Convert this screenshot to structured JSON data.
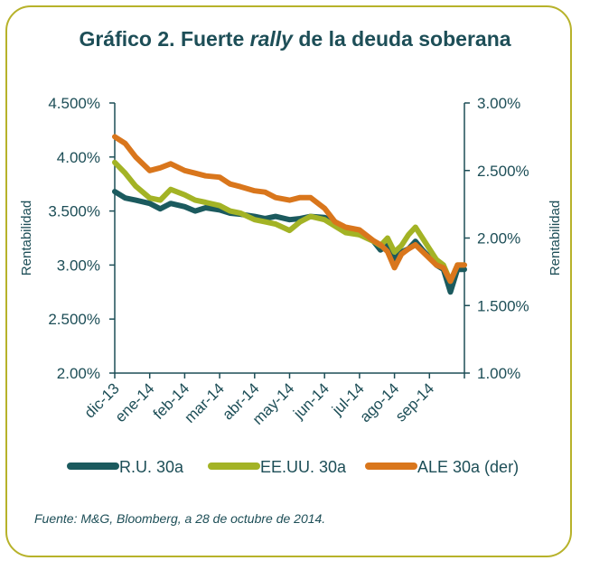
{
  "title": {
    "prefix": "Gráfico 2. Fuerte ",
    "italic": "rally",
    "suffix": " de la deuda soberana"
  },
  "source": "Fuente: M&G, Bloomberg, a 28 de octubre de 2014.",
  "colors": {
    "frame": "#b7b22a",
    "text": "#1d4e57",
    "ru": "#1b5a5e",
    "eeuu": "#a3b325",
    "ale": "#d9761c"
  },
  "chart_data": {
    "type": "line",
    "title": "Gráfico 2. Fuerte rally de la deuda soberana",
    "y_left": {
      "label": "Rentabilidad",
      "lim": [
        2.0,
        4.5
      ],
      "ticks": [
        {
          "v": 4.5,
          "t": "4.500%"
        },
        {
          "v": 4.0,
          "t": "4.00%"
        },
        {
          "v": 3.5,
          "t": "3.500%"
        },
        {
          "v": 3.0,
          "t": "3.00%"
        },
        {
          "v": 2.5,
          "t": "2.500%"
        },
        {
          "v": 2.0,
          "t": "2.00%"
        }
      ]
    },
    "y_right": {
      "label": "Rentabilidad",
      "lim": [
        1.0,
        3.0
      ],
      "ticks": [
        {
          "v": 3.0,
          "t": "3.00%"
        },
        {
          "v": 2.5,
          "t": "2.500%"
        },
        {
          "v": 2.0,
          "t": "2.00%"
        },
        {
          "v": 1.5,
          "t": "1.500%"
        },
        {
          "v": 1.0,
          "t": "1.00%"
        }
      ]
    },
    "x_ticks": [
      "dic-13",
      "ene-14",
      "feb-14",
      "mar-14",
      "abr-14",
      "may-14",
      "jun-14",
      "jul-14",
      "ago-14",
      "sep-14"
    ],
    "x_range": [
      0,
      10
    ],
    "grid": false,
    "legend_position": "bottom",
    "series": [
      {
        "name": "R.U. 30a",
        "axis": "left",
        "color": "#1b5a5e",
        "x": [
          0,
          0.3,
          0.6,
          1.0,
          1.3,
          1.6,
          2.0,
          2.3,
          2.6,
          3.0,
          3.3,
          3.6,
          4.0,
          4.3,
          4.6,
          5.0,
          5.3,
          5.6,
          6.0,
          6.3,
          6.6,
          7.0,
          7.2,
          7.4,
          7.6,
          7.8,
          8.0,
          8.2,
          8.4,
          8.6,
          8.8,
          9.0,
          9.2,
          9.4,
          9.6,
          9.8,
          10.0
        ],
        "y": [
          3.68,
          3.62,
          3.6,
          3.57,
          3.52,
          3.57,
          3.54,
          3.5,
          3.53,
          3.51,
          3.48,
          3.47,
          3.45,
          3.43,
          3.45,
          3.42,
          3.43,
          3.45,
          3.44,
          3.4,
          3.34,
          3.28,
          3.26,
          3.22,
          3.14,
          3.18,
          3.05,
          3.12,
          3.15,
          3.22,
          3.14,
          3.07,
          3.0,
          2.96,
          2.75,
          2.96,
          2.96
        ]
      },
      {
        "name": "EE.UU. 30a",
        "axis": "left",
        "color": "#a3b325",
        "x": [
          0,
          0.3,
          0.6,
          1.0,
          1.3,
          1.6,
          2.0,
          2.3,
          2.6,
          3.0,
          3.3,
          3.6,
          4.0,
          4.3,
          4.6,
          5.0,
          5.3,
          5.6,
          6.0,
          6.3,
          6.6,
          7.0,
          7.2,
          7.4,
          7.6,
          7.8,
          8.0,
          8.2,
          8.4,
          8.6,
          8.8,
          9.0,
          9.2,
          9.4,
          9.6,
          9.8,
          10.0
        ],
        "y": [
          3.95,
          3.85,
          3.73,
          3.62,
          3.6,
          3.7,
          3.65,
          3.6,
          3.58,
          3.55,
          3.5,
          3.48,
          3.42,
          3.4,
          3.38,
          3.32,
          3.4,
          3.45,
          3.42,
          3.36,
          3.3,
          3.28,
          3.25,
          3.22,
          3.18,
          3.25,
          3.12,
          3.18,
          3.28,
          3.35,
          3.25,
          3.15,
          3.05,
          3.0,
          2.85,
          3.0,
          3.0
        ]
      },
      {
        "name": "ALE 30a (der)",
        "axis": "right",
        "color": "#d9761c",
        "x": [
          0,
          0.3,
          0.6,
          1.0,
          1.3,
          1.6,
          2.0,
          2.3,
          2.6,
          3.0,
          3.3,
          3.6,
          4.0,
          4.3,
          4.6,
          5.0,
          5.3,
          5.6,
          6.0,
          6.3,
          6.6,
          7.0,
          7.2,
          7.4,
          7.6,
          7.8,
          8.0,
          8.2,
          8.4,
          8.6,
          8.8,
          9.0,
          9.2,
          9.4,
          9.6,
          9.8,
          10.0
        ],
        "y": [
          2.75,
          2.7,
          2.6,
          2.5,
          2.52,
          2.55,
          2.5,
          2.48,
          2.46,
          2.45,
          2.4,
          2.38,
          2.35,
          2.34,
          2.3,
          2.28,
          2.3,
          2.3,
          2.22,
          2.12,
          2.08,
          2.06,
          2.02,
          1.98,
          1.95,
          1.9,
          1.78,
          1.88,
          1.92,
          1.95,
          1.9,
          1.85,
          1.8,
          1.78,
          1.68,
          1.8,
          1.8
        ]
      }
    ]
  }
}
